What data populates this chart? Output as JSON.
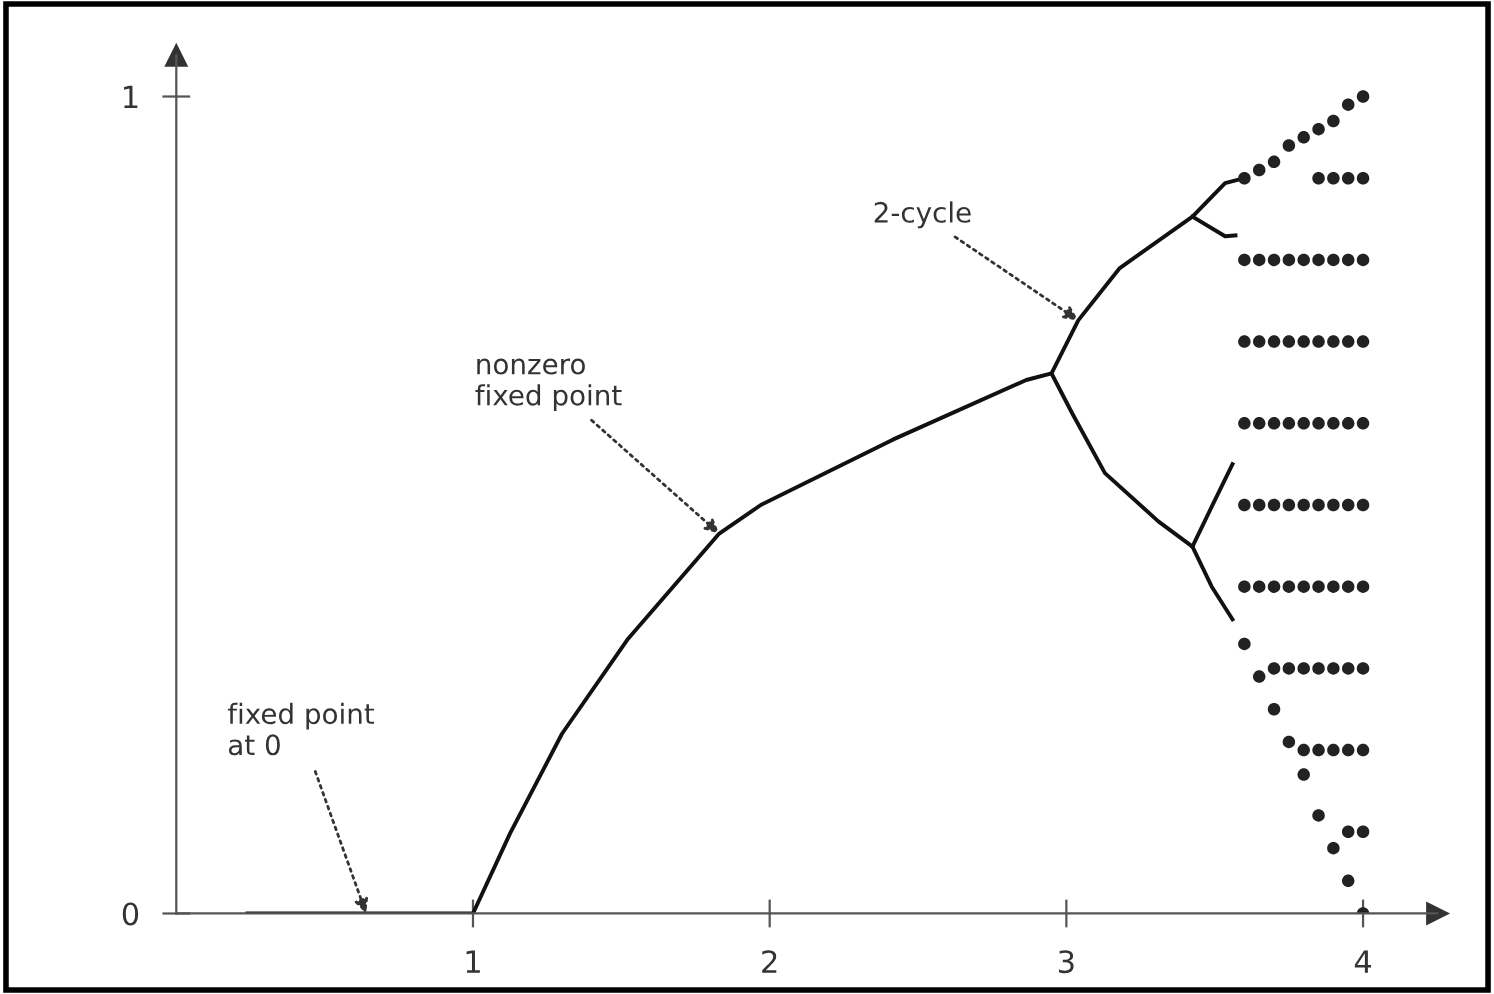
{
  "chart_data": {
    "type": "line",
    "xlim": [
      0,
      4.25
    ],
    "ylim": [
      0,
      1.05
    ],
    "xticks": [
      1,
      2,
      3,
      4
    ],
    "yticks": [
      0,
      1
    ],
    "grid": false,
    "legend": false,
    "marker": "none",
    "line_style": "solid",
    "series": [
      {
        "color": "#111111",
        "x": [
          0.24,
          0.5,
          0.8,
          1.0,
          1.125,
          1.3,
          1.52,
          1.83,
          1.97,
          2.415,
          2.865,
          2.95
        ],
        "values": [
          0,
          0,
          0,
          0,
          0.098,
          0.22,
          0.335,
          0.465,
          0.5,
          0.58,
          0.653,
          0.661
        ]
      },
      {
        "color": "#111111",
        "x": [
          2.95,
          3.04,
          3.18,
          3.425,
          3.535,
          3.6
        ],
        "values": [
          0.661,
          0.726,
          0.79,
          0.853,
          0.894,
          0.9
        ]
      },
      {
        "color": "#111111",
        "x": [
          3.425,
          3.535,
          3.57
        ],
        "values": [
          0.853,
          0.829,
          0.83
        ]
      },
      {
        "color": "#111111",
        "x": [
          2.95,
          3.02,
          3.13,
          3.31,
          3.425,
          3.49,
          3.56
        ],
        "values": [
          0.661,
          0.612,
          0.539,
          0.48,
          0.449,
          0.4,
          0.36
        ]
      },
      {
        "color": "#111111",
        "x": [
          3.425,
          3.49,
          3.56
        ],
        "values": [
          0.449,
          0.498,
          0.55
        ]
      },
      {
        "type": "scatter",
        "marker": "circle",
        "color": "#222222",
        "x": [
          3.6,
          3.6,
          3.6,
          3.6,
          3.6,
          3.6,
          3.6,
          3.65,
          3.65,
          3.65,
          3.65,
          3.65,
          3.65,
          3.65,
          3.7,
          3.7,
          3.7,
          3.7,
          3.7,
          3.7,
          3.7,
          3.7,
          3.75,
          3.75,
          3.75,
          3.75,
          3.75,
          3.75,
          3.75,
          3.75,
          3.8,
          3.8,
          3.8,
          3.8,
          3.8,
          3.8,
          3.8,
          3.8,
          3.8,
          3.85,
          3.85,
          3.85,
          3.85,
          3.85,
          3.85,
          3.85,
          3.85,
          3.85,
          3.85,
          3.9,
          3.9,
          3.9,
          3.9,
          3.9,
          3.9,
          3.9,
          3.9,
          3.9,
          3.9,
          3.95,
          3.95,
          3.95,
          3.95,
          3.95,
          3.95,
          3.95,
          3.95,
          3.95,
          3.95,
          3.95,
          4.0,
          4.0,
          4.0,
          4.0,
          4.0,
          4.0,
          4.0,
          4.0,
          4.0,
          4.0,
          4.0
        ],
        "values": [
          0.33,
          0.4,
          0.5,
          0.6,
          0.7,
          0.8,
          0.9,
          0.29,
          0.4,
          0.5,
          0.6,
          0.7,
          0.8,
          0.91,
          0.25,
          0.3,
          0.4,
          0.5,
          0.6,
          0.7,
          0.8,
          0.92,
          0.21,
          0.3,
          0.4,
          0.5,
          0.6,
          0.7,
          0.8,
          0.94,
          0.17,
          0.2,
          0.3,
          0.4,
          0.5,
          0.6,
          0.7,
          0.8,
          0.95,
          0.12,
          0.2,
          0.3,
          0.4,
          0.5,
          0.6,
          0.7,
          0.8,
          0.9,
          0.96,
          0.08,
          0.2,
          0.3,
          0.4,
          0.5,
          0.6,
          0.7,
          0.8,
          0.9,
          0.97,
          0.04,
          0.1,
          0.2,
          0.3,
          0.4,
          0.5,
          0.6,
          0.7,
          0.8,
          0.9,
          0.99,
          0.0,
          0.1,
          0.2,
          0.3,
          0.4,
          0.5,
          0.6,
          0.7,
          0.8,
          0.9,
          1.0
        ]
      }
    ],
    "annotations": [
      {
        "text": "fixed point\nat 0",
        "x": 0.64,
        "y": 0
      },
      {
        "text": "nonzero\nfixed point",
        "x": 1.83,
        "y": 0.465
      },
      {
        "text": "2-cycle",
        "x": 3.04,
        "y": 0.726
      }
    ]
  }
}
